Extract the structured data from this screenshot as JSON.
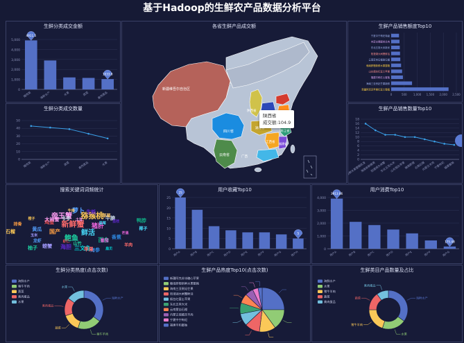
{
  "page": {
    "title": "基于Hadoop的生鲜农产品数据分析平台"
  },
  "category_sales": {
    "title": "生鲜分类成交金额",
    "chart_data": {
      "type": "bar",
      "categories": [
        "猪肉类",
        "海鲜水产",
        "水果",
        "蔬菜",
        "禽肉蛋品"
      ],
      "values": [
        4911.5,
        2900,
        1200,
        1150,
        1033.8
      ],
      "ylim": [
        0,
        5000
      ],
      "yticks": [
        0,
        1000,
        2000,
        3000,
        4000,
        5000
      ],
      "markers": [
        "4911.5",
        "1033.8"
      ]
    }
  },
  "category_qty": {
    "title": "生鲜分类成交数量",
    "chart_data": {
      "type": "line",
      "categories": [
        "猪肉类",
        "海鲜水产",
        "蔬菜",
        "禽肉蛋品",
        "水果"
      ],
      "values": [
        43,
        41,
        39,
        33,
        27
      ],
      "ylim": [
        0,
        50
      ],
      "yticks": [
        0,
        10,
        20,
        30,
        40,
        50
      ]
    }
  },
  "map": {
    "title": "各省生鲜产品成交额",
    "labels": {
      "xinjiang": "新疆维吾尔自治区",
      "sichuan": "四川省",
      "yunnan": "云南省",
      "shaanxi": "陕西省",
      "hubei": "湖北省",
      "jiangxi": "江西省",
      "zhejiang": "浙江省",
      "fujian": "福建省",
      "guangxi": "广西"
    },
    "tooltip": {
      "province": "陕西省",
      "value_text": "成交额:104.9"
    },
    "colors": {
      "base": "#b8c4d6",
      "xinjiang": "#b5625a",
      "sichuan": "#1a8ce0",
      "yunnan": "#4e8b4a",
      "shaanxi": "#d0c24a",
      "henan": "#2c48b8",
      "hubei": "#c4a52e",
      "jiangxi": "#f5a623",
      "zhejiang": "#2e9e7a",
      "fujian": "#7a4bd8",
      "guangdong": "#43b7e8",
      "jiangsu": "#ff8c1a",
      "shandong": "#d43b2e",
      "anhui": "#9ecb4f"
    }
  },
  "product_sales": {
    "title": "生鲜产品销售额度Top10",
    "chart_data": {
      "type": "bar",
      "orientation": "horizontal",
      "categories": [
        "新疆阿克苏苹果红富士整箱",
        "海南三亚贵妃芒果新鲜",
        "福建平和红心蜜柚",
        "山东烟台红富士苹果",
        "赣南脐橙新鲜水果整箱",
        "云南蒙自石榴甜石榴",
        "阳澄湖大闸蟹鲜活",
        "东北五常大米新米",
        "内蒙古锡盟羔羊肉",
        "宁夏中宁枸杞特级"
      ],
      "values": [
        2200,
        800,
        450,
        420,
        380,
        350,
        340,
        330,
        320,
        300
      ],
      "xlim": [
        0,
        2500
      ],
      "xticks": [
        0,
        500,
        1000,
        1500,
        2000,
        2500
      ]
    }
  },
  "product_qty": {
    "title": "生鲜产品销售数量Top10",
    "chart_data": {
      "type": "line",
      "categories": [
        "新鲜水果整箱批发",
        "海南新鲜椰青",
        "阳澄湖大闸蟹",
        "东北五常大米",
        "山东烟台苹果",
        "赣南脐橙",
        "云南石榴",
        "内蒙古羊肉",
        "宁夏枸杞",
        "福建蜜柚"
      ],
      "values": [
        16,
        13,
        11,
        11,
        10,
        10,
        9,
        8,
        7,
        6.5
      ],
      "ylim": [
        0,
        18
      ],
      "yticks": [
        0,
        2,
        4,
        6,
        8,
        10,
        12,
        14,
        16,
        18
      ]
    }
  },
  "keywords": {
    "title": "搜索关键词词频统计",
    "words": [
      "新鲜蟹",
      "猕猴桃",
      "鲜活",
      "鲍鱼",
      "帝王蟹",
      "猪肝",
      "萝卜",
      "海胆",
      "三文鱼",
      "国产",
      "百合",
      "鸡蛋",
      "牛腩",
      "海参",
      "螃蟹",
      "牛排",
      "羊肉",
      "石榴",
      "蓝莓",
      "山竹",
      "大闸蟹",
      "芒果",
      "龙虾",
      "生蚝",
      "扇贝",
      "排骨",
      "鸭脖",
      "虾仁",
      "冬枣",
      "香蕉",
      "玉米",
      "草莓",
      "苹果",
      "橙子",
      "椰子",
      "柚子",
      "土豆",
      "番茄",
      "黄瓜",
      "荔枝"
    ]
  },
  "user_fav": {
    "title": "用户收藏Top10",
    "chart_data": {
      "type": "bar",
      "categories": [
        "用户A",
        "用户B",
        "用户C",
        "用户D",
        "用户E",
        "用户F",
        "用户G",
        "用户H"
      ],
      "values": [
        25,
        19,
        11,
        9,
        8,
        8,
        7,
        5
      ],
      "ylim": [
        0,
        25
      ],
      "yticks": [
        0,
        5,
        10,
        15,
        20,
        25
      ],
      "markers": [
        "25",
        "5"
      ]
    }
  },
  "user_spend": {
    "title": "用户消费Top10",
    "chart_data": {
      "type": "bar",
      "categories": [
        "用户A",
        "用户B",
        "用户C",
        "用户D",
        "用户E",
        "用户F",
        "用户G"
      ],
      "values": [
        3913.66,
        2100,
        1850,
        1500,
        1200,
        650,
        175.48
      ],
      "ylim": [
        0,
        4000
      ],
      "yticks": [
        0,
        1000,
        2000,
        3000,
        4000
      ],
      "markers": [
        "3913.66",
        "175.48"
      ]
    }
  },
  "cat_heat": {
    "title": "生鲜分类热度(点击次数)",
    "chart_data": {
      "type": "pie",
      "style": "donut",
      "labels": [
        "海鲜水产",
        "猪牛羊肉",
        "蔬菜",
        "禽肉蛋品",
        "水果"
      ],
      "values": [
        35,
        20,
        15,
        15,
        15
      ],
      "colors": [
        "#5470c6",
        "#91cc75",
        "#fac858",
        "#ee6666",
        "#73c0de"
      ]
    }
  },
  "prod_heat": {
    "title": "生鲜产品热度Top10(点击次数)",
    "chart_data": {
      "type": "pie",
      "labels": [
        "新疆阿克苏冰糖心苹果",
        "赣南脐橙新鲜水果整箱",
        "海南三亚贵妃芒果",
        "阳澄湖大闸蟹鲜活",
        "烟台红富士苹果",
        "东北五常大米",
        "云南蒙自石榴",
        "内蒙古锡盟羔羊肉",
        "宁夏中宁枸杞",
        "福建平和蜜柚"
      ],
      "values": [
        25,
        15,
        12,
        11,
        9,
        8,
        7,
        6,
        4,
        3
      ],
      "colors": [
        "#5470c6",
        "#91cc75",
        "#fac858",
        "#ee6666",
        "#73c0de",
        "#3ba272",
        "#fc8452",
        "#9a60b4",
        "#ea7ccc",
        "#5470c6"
      ]
    }
  },
  "cat_count": {
    "title": "生鲜类目产品数量及占比",
    "chart_data": {
      "type": "pie",
      "style": "donut",
      "labels": [
        "海鲜水产",
        "水果",
        "猪牛羊肉",
        "蔬菜",
        "禽肉蛋品"
      ],
      "values": [
        35,
        20,
        20,
        15,
        10
      ],
      "colors": [
        "#5470c6",
        "#91cc75",
        "#fac858",
        "#ee6666",
        "#73c0de"
      ]
    }
  }
}
